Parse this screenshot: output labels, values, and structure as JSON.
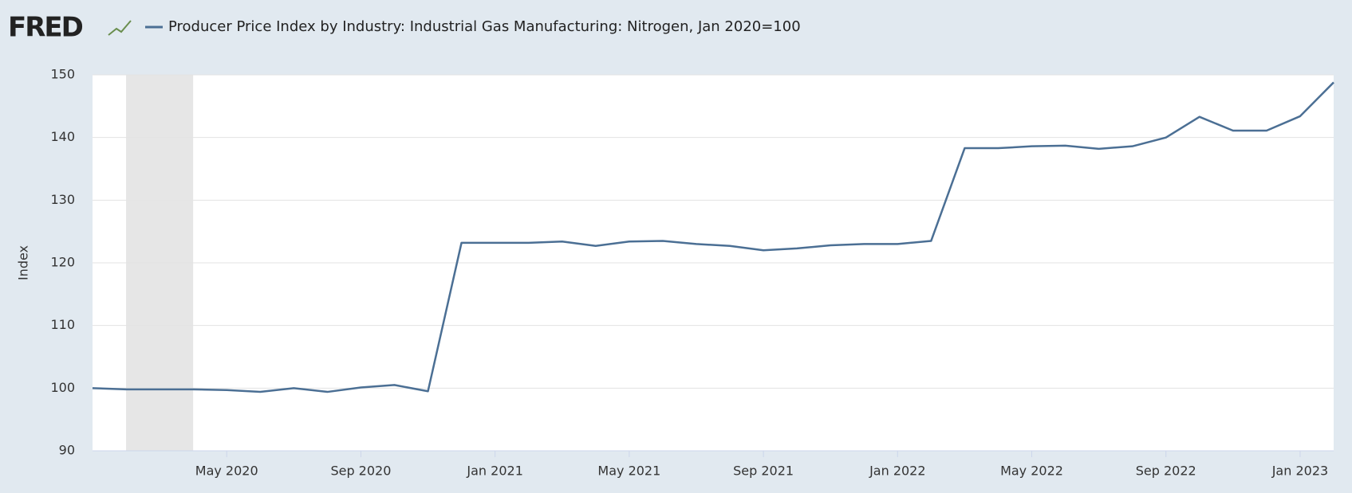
{
  "logo": "FRED",
  "chart_data": {
    "type": "line",
    "title": "Producer Price Index by Industry: Industrial Gas Manufacturing: Nitrogen, Jan 2020=100",
    "ylabel": "Index",
    "x": [
      "2020-01",
      "2020-02",
      "2020-03",
      "2020-04",
      "2020-05",
      "2020-06",
      "2020-07",
      "2020-08",
      "2020-09",
      "2020-10",
      "2020-11",
      "2020-12",
      "2021-01",
      "2021-02",
      "2021-03",
      "2021-04",
      "2021-05",
      "2021-06",
      "2021-07",
      "2021-08",
      "2021-09",
      "2021-10",
      "2021-11",
      "2021-12",
      "2022-01",
      "2022-02",
      "2022-03",
      "2022-04",
      "2022-05",
      "2022-06",
      "2022-07",
      "2022-08",
      "2022-09",
      "2022-10",
      "2022-11",
      "2022-12",
      "2023-01",
      "2023-02"
    ],
    "series": [
      {
        "name": "Producer Price Index by Industry: Industrial Gas Manufacturing: Nitrogen, Jan 2020=100",
        "color": "#4b6f94",
        "values": [
          100.0,
          99.8,
          99.8,
          99.8,
          99.7,
          99.4,
          100.0,
          99.4,
          100.1,
          100.5,
          99.5,
          123.2,
          123.2,
          123.2,
          123.4,
          122.7,
          123.4,
          123.5,
          123.0,
          122.7,
          122.0,
          122.3,
          122.8,
          123.0,
          123.0,
          123.5,
          138.3,
          138.3,
          138.6,
          138.7,
          138.2,
          138.6,
          140.0,
          143.3,
          141.1,
          141.1,
          143.4,
          148.8
        ]
      }
    ],
    "recession": [
      "2020-02",
      "2020-04"
    ],
    "ylim": [
      90,
      150
    ],
    "yticks": [
      90,
      100,
      110,
      120,
      130,
      140,
      150
    ],
    "xticks": [
      {
        "value": "2020-05",
        "label": "May 2020"
      },
      {
        "value": "2020-09",
        "label": "Sep 2020"
      },
      {
        "value": "2021-01",
        "label": "Jan 2021"
      },
      {
        "value": "2021-05",
        "label": "May 2021"
      },
      {
        "value": "2021-09",
        "label": "Sep 2021"
      },
      {
        "value": "2022-01",
        "label": "Jan 2022"
      },
      {
        "value": "2022-05",
        "label": "May 2022"
      },
      {
        "value": "2022-09",
        "label": "Sep 2022"
      },
      {
        "value": "2023-01",
        "label": "Jan 2023"
      }
    ],
    "grid": true
  }
}
